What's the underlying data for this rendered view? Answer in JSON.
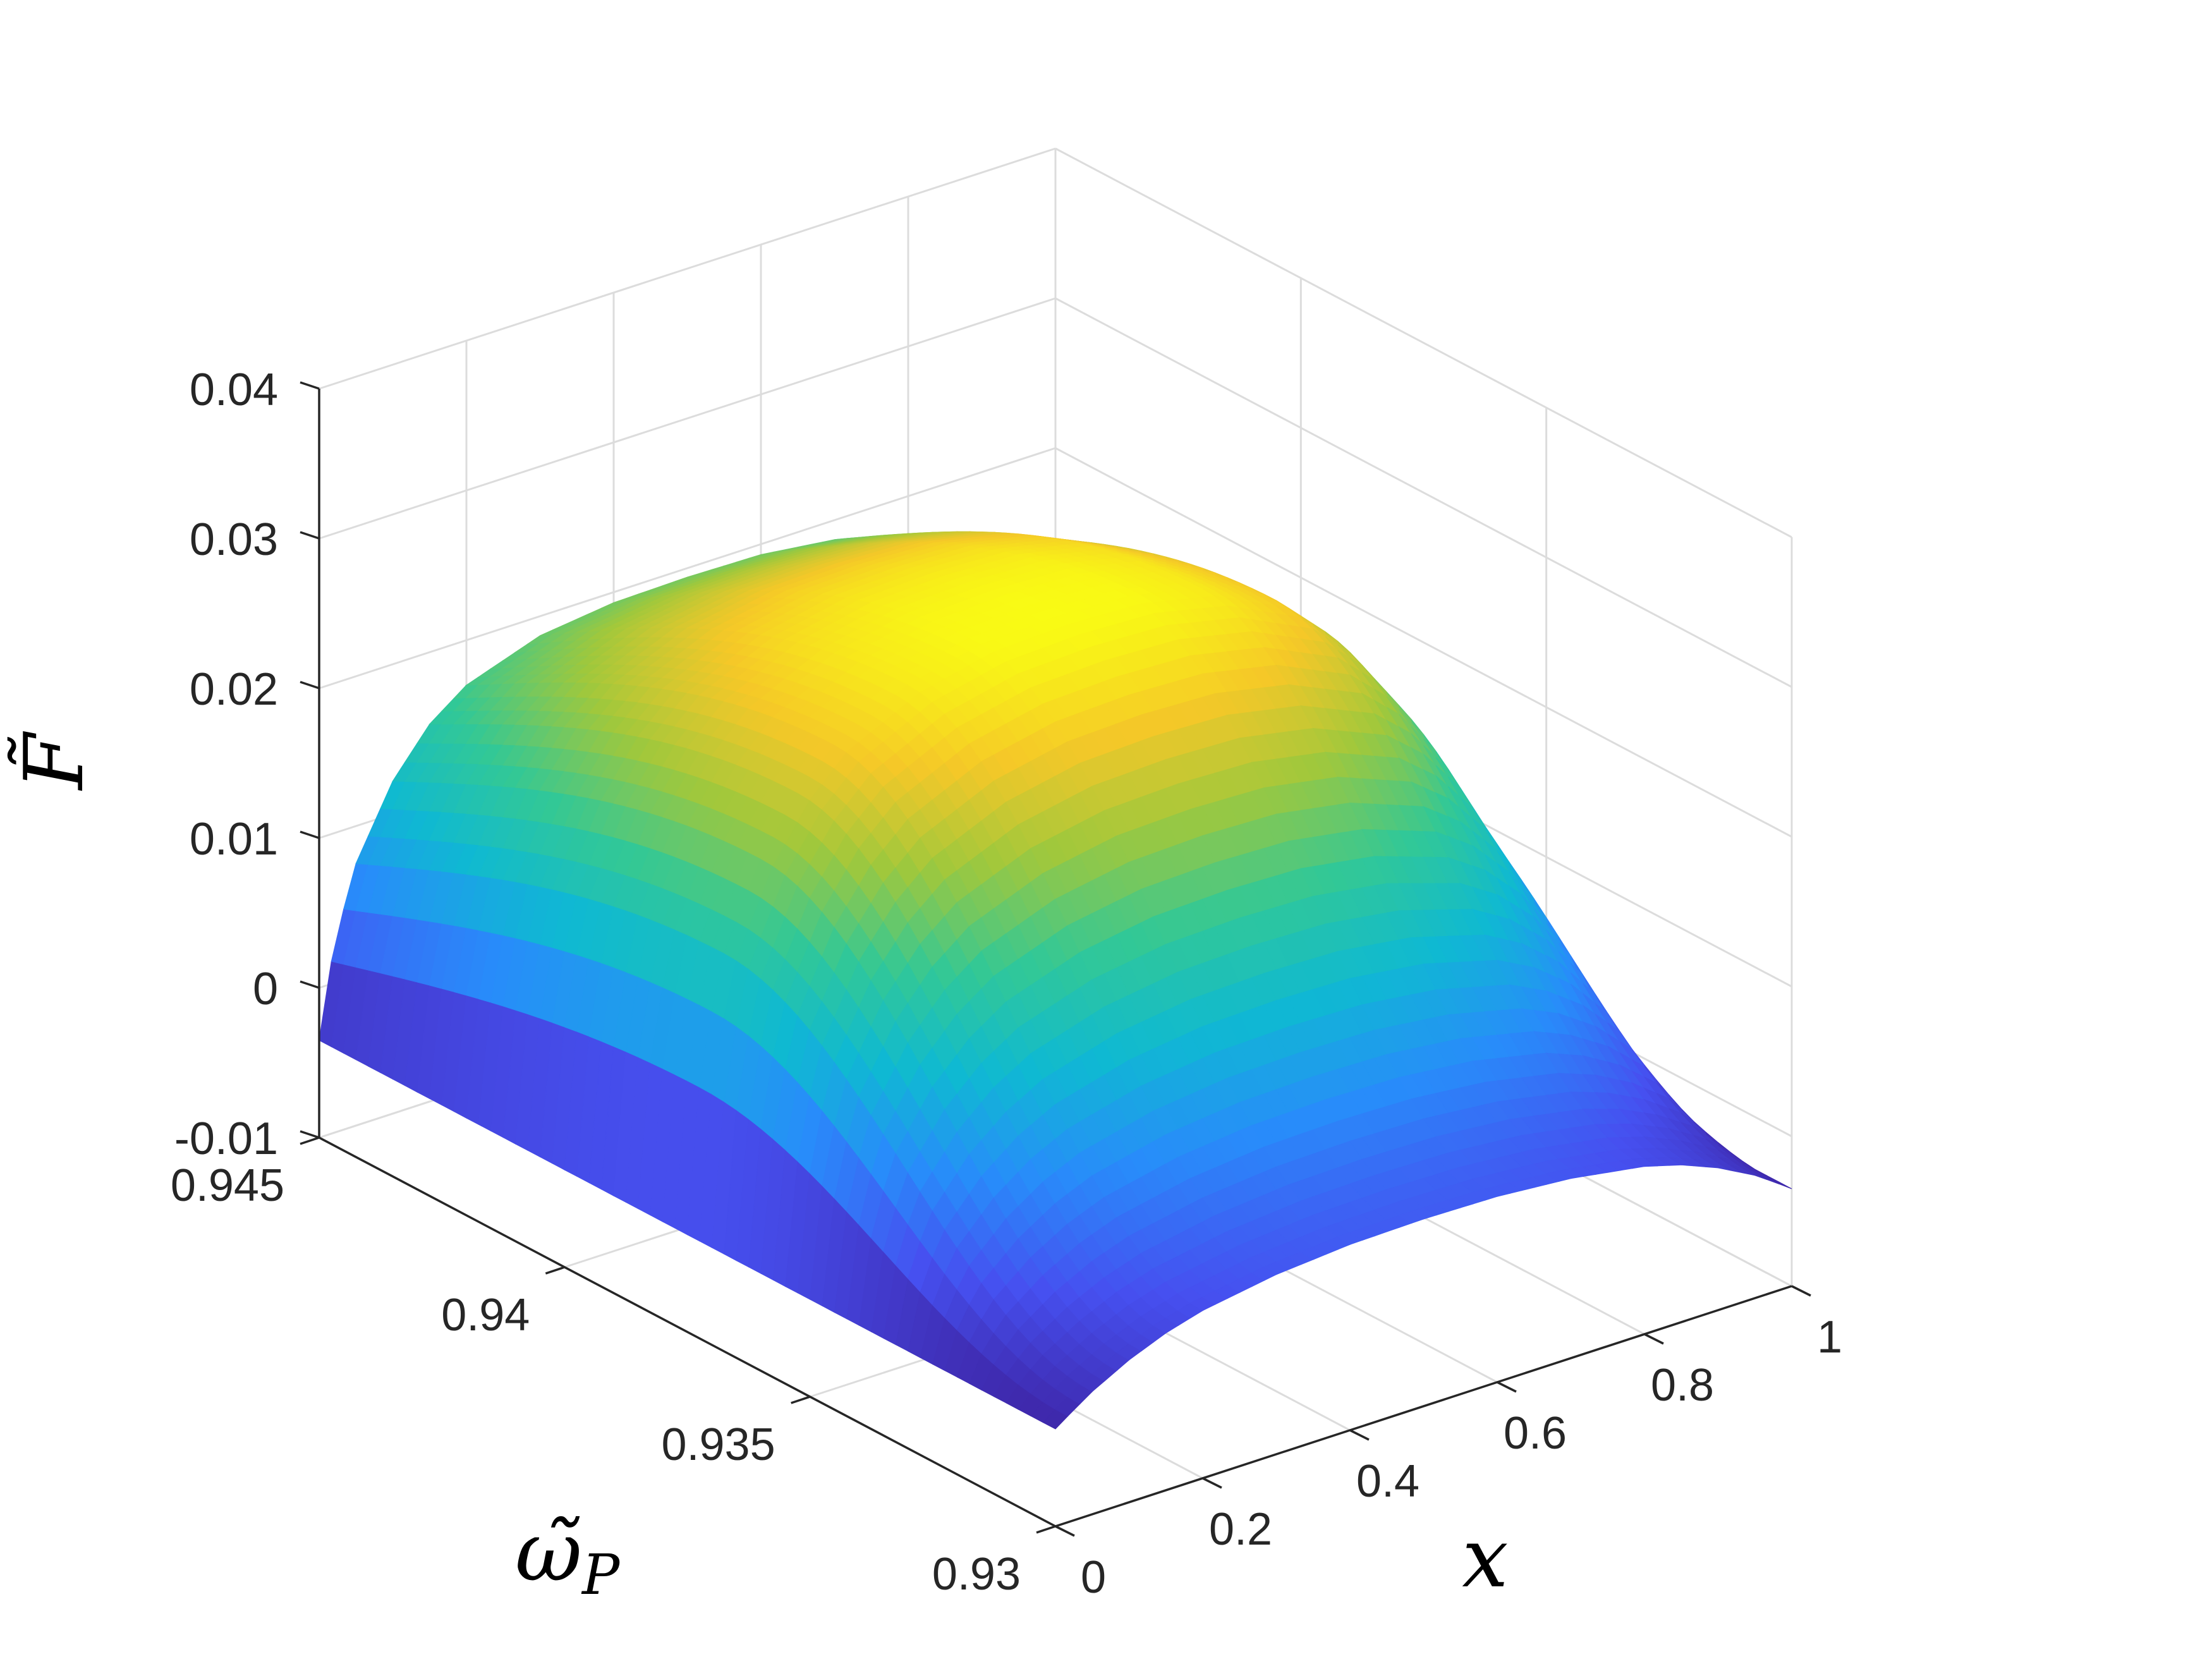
{
  "chart_data": {
    "type": "surface",
    "x_axis": {
      "label": "x",
      "range": [
        0,
        1
      ],
      "ticks": [
        "0",
        "0.2",
        "0.4",
        "0.6",
        "0.8",
        "1"
      ]
    },
    "y_axis": {
      "label": "ω̃P",
      "label_main": "ω̃",
      "label_sub": "P",
      "range": [
        0.93,
        0.945
      ],
      "ticks": [
        "0.93",
        "0.935",
        "0.94",
        "0.945"
      ]
    },
    "z_axis": {
      "label": "F̃",
      "range": [
        -0.01,
        0.04
      ],
      "ticks": [
        "-0.01",
        "0",
        "0.01",
        "0.02",
        "0.03",
        "0.04"
      ]
    },
    "grid": true,
    "colormap": "parula",
    "surface": {
      "x": [
        0,
        0.02,
        0.05,
        0.1,
        0.15,
        0.2,
        0.3,
        0.4,
        0.5,
        0.6,
        0.7,
        0.8,
        0.85,
        0.9,
        0.95,
        0.98,
        1
      ],
      "omega_edge_values": [
        -0.0035,
        0.0025,
        0.0075,
        0.0122,
        0.0152,
        0.017,
        0.0187,
        0.0193,
        0.0194,
        0.0193,
        0.0187,
        0.017,
        0.0152,
        0.0122,
        0.0075,
        0.0025,
        -0.0035
      ],
      "omega_peak_values": [
        -0.0035,
        0.008,
        0.0145,
        0.02,
        0.0236,
        0.026,
        0.0284,
        0.0295,
        0.0297,
        0.0295,
        0.0284,
        0.026,
        0.0236,
        0.02,
        0.0145,
        0.008,
        -0.0035
      ],
      "omega_low_values": [
        -0.0035,
        -0.0028,
        -0.0018,
        -0.0005,
        0.0005,
        0.0012,
        0.002,
        0.0024,
        0.0025,
        0.0024,
        0.002,
        0.0012,
        0.0005,
        -0.0005,
        -0.0018,
        -0.0028,
        -0.0035
      ],
      "omega_peak": 0.9375
    }
  }
}
